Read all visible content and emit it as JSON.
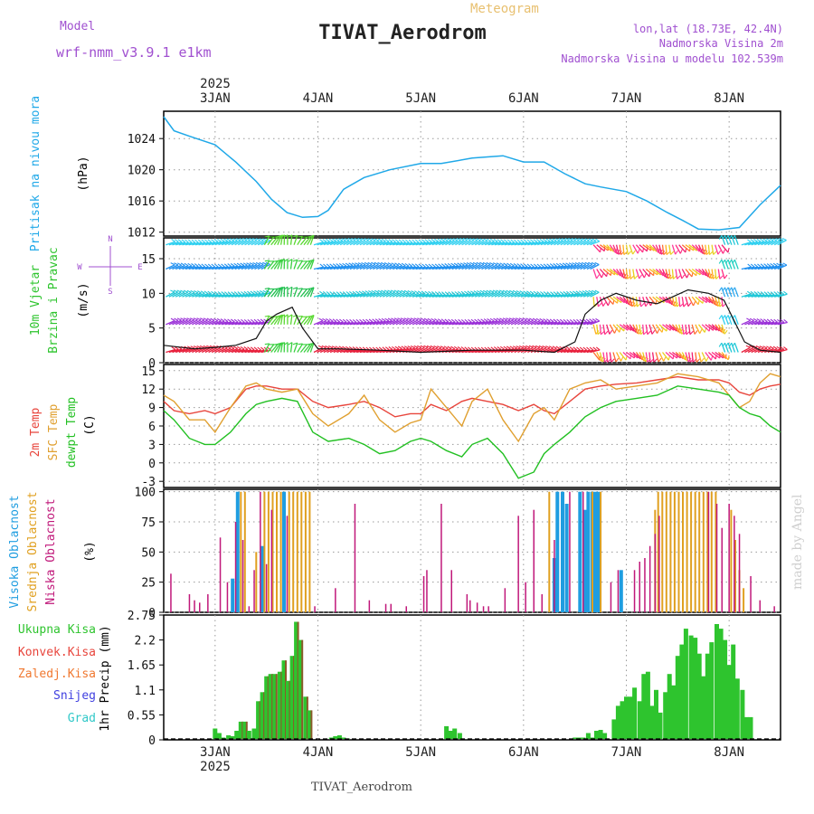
{
  "header": {
    "model_label": "Model",
    "model_name": "wrf-nmm_v3.9.1 e1km",
    "product": "Meteogram",
    "station": "TIVAT_Aerodrom",
    "coords": "lon,lat (18.73E, 42.4N)",
    "elevation": "Nadmorska Visina 2m",
    "model_elevation": "Nadmorska Visina u modelu 102.539m",
    "year": "2025",
    "footer_station": "TIVAT_Aerodrom",
    "watermark": "made by Angel"
  },
  "colors": {
    "pressure": "#1fa8e8",
    "temp2m": "#e8453c",
    "sfc_temp": "#e0a030",
    "dewpoint": "#22c022",
    "cloud_high": "#1f9de0",
    "cloud_mid": "#e0a020",
    "cloud_low": "#c0187a",
    "precip_total": "#2ec42e",
    "precip_conv": "#d03030",
    "precip_frozen": "#f07830",
    "snow": "#4040e0",
    "hail": "#30c8c8",
    "title_purple": "#a050d0",
    "meteogram_gold": "#e8c070"
  },
  "chart_data": [
    {
      "type": "line",
      "panel": "pressure",
      "ylabel": "(hPa)",
      "series_label": "Pritisak na nivou mora",
      "x_ticks": [
        "3JAN",
        "4JAN",
        "5JAN",
        "6JAN",
        "7JAN",
        "8JAN"
      ],
      "ylim": [
        1011.5,
        1027.5
      ],
      "y_ticks": [
        1012,
        1016,
        1020,
        1024
      ],
      "x_days": [
        2.5,
        2.6,
        2.75,
        3.0,
        3.2,
        3.4,
        3.55,
        3.7,
        3.85,
        4.0,
        4.1,
        4.25,
        4.45,
        4.7,
        5.0,
        5.2,
        5.5,
        5.8,
        6.0,
        6.2,
        6.4,
        6.6,
        6.75,
        7.0,
        7.2,
        7.4,
        7.55,
        7.7,
        7.9,
        8.1,
        8.3,
        8.5
      ],
      "values": [
        1026.8,
        1025.0,
        1024.3,
        1023.2,
        1021.0,
        1018.5,
        1016.2,
        1014.5,
        1013.9,
        1014.0,
        1014.8,
        1017.5,
        1019.0,
        1020.0,
        1020.8,
        1020.8,
        1021.5,
        1021.8,
        1021.0,
        1021.0,
        1019.5,
        1018.2,
        1017.8,
        1017.2,
        1016.0,
        1014.5,
        1013.5,
        1012.4,
        1012.3,
        1012.6,
        1015.5,
        1018.0
      ]
    },
    {
      "type": "line",
      "panel": "wind",
      "ylabel": "(m/s)",
      "series_label_1": "10m Vjetar",
      "series_label_2": "Brzina i Pravac",
      "compass_n": "N",
      "compass_s": "S",
      "compass_w": "W",
      "compass_e": "E",
      "ylim": [
        0,
        18
      ],
      "y_ticks": [
        0,
        5,
        10,
        15
      ],
      "x_days": [
        2.5,
        2.8,
        3.0,
        3.2,
        3.4,
        3.5,
        3.6,
        3.75,
        3.85,
        4.0,
        4.2,
        4.6,
        5.0,
        5.5,
        6.0,
        6.3,
        6.5,
        6.6,
        6.75,
        6.9,
        7.1,
        7.3,
        7.45,
        7.6,
        7.8,
        7.95,
        8.05,
        8.15,
        8.3,
        8.5
      ],
      "values": [
        2.5,
        2.0,
        2.2,
        2.5,
        3.5,
        6.0,
        7.0,
        8.0,
        5.0,
        2.0,
        2.0,
        1.8,
        1.5,
        1.8,
        1.8,
        1.5,
        3.0,
        7.0,
        9.0,
        10.0,
        9.0,
        8.5,
        9.5,
        10.5,
        10.0,
        9.0,
        6.0,
        3.0,
        1.8,
        1.5
      ],
      "barb_band_levels": [
        1.5,
        5.5,
        9.5,
        13.5,
        17.0
      ],
      "band_colors": [
        "#e8203c",
        "#9a30d8",
        "#20c8d8",
        "#2090f0",
        "#30d0f0"
      ]
    },
    {
      "type": "line",
      "panel": "temperature",
      "ylabel": "(C)",
      "series_label_1": "2m Temp",
      "series_label_2": "SFC Temp",
      "series_label_3": "dewpt Temp",
      "ylim": [
        -4,
        16
      ],
      "y_ticks": [
        -3,
        0,
        3,
        6,
        9,
        12,
        15
      ],
      "x_days": [
        2.5,
        2.6,
        2.75,
        2.9,
        3.0,
        3.15,
        3.3,
        3.4,
        3.5,
        3.65,
        3.8,
        3.95,
        4.1,
        4.3,
        4.45,
        4.6,
        4.75,
        4.9,
        5.0,
        5.1,
        5.25,
        5.4,
        5.5,
        5.65,
        5.8,
        5.95,
        6.1,
        6.2,
        6.3,
        6.45,
        6.6,
        6.75,
        6.9,
        7.1,
        7.3,
        7.5,
        7.7,
        7.9,
        8.0,
        8.1,
        8.2,
        8.3,
        8.4,
        8.5
      ],
      "series": [
        {
          "name": "2m Temp",
          "values": [
            10.0,
            8.5,
            8.0,
            8.5,
            8.0,
            9.0,
            12.0,
            12.5,
            12.5,
            12.0,
            12.0,
            10.0,
            9.0,
            9.5,
            10.0,
            9.0,
            7.5,
            8.0,
            8.0,
            9.5,
            8.5,
            10.0,
            10.5,
            10.0,
            9.5,
            8.5,
            9.5,
            8.5,
            8.0,
            10.0,
            12.0,
            12.5,
            12.8,
            13.0,
            13.5,
            14.0,
            13.5,
            13.5,
            13.0,
            11.5,
            11.0,
            12.0,
            12.5,
            12.8
          ]
        },
        {
          "name": "SFC Temp",
          "values": [
            11.0,
            10.0,
            7.0,
            7.0,
            5.0,
            9.0,
            12.5,
            13.0,
            12.0,
            11.5,
            12.0,
            8.0,
            6.0,
            8.0,
            11.0,
            7.0,
            5.0,
            6.5,
            7.0,
            12.0,
            9.0,
            6.0,
            10.0,
            12.0,
            7.0,
            3.5,
            8.0,
            9.0,
            7.0,
            12.0,
            13.0,
            13.5,
            12.0,
            12.5,
            13.0,
            14.5,
            14.0,
            13.0,
            11.0,
            9.0,
            10.0,
            13.0,
            14.5,
            14.0
          ]
        },
        {
          "name": "dewpt Temp",
          "values": [
            8.5,
            7.0,
            4.0,
            3.0,
            3.0,
            5.0,
            8.0,
            9.5,
            10.0,
            10.5,
            10.0,
            5.0,
            3.5,
            4.0,
            3.0,
            1.5,
            2.0,
            3.5,
            4.0,
            3.5,
            2.0,
            1.0,
            3.0,
            4.0,
            1.5,
            -2.5,
            -1.5,
            1.5,
            3.0,
            5.0,
            7.5,
            9.0,
            10.0,
            10.5,
            11.0,
            12.5,
            12.0,
            11.5,
            11.0,
            9.0,
            8.0,
            7.5,
            6.0,
            5.0
          ]
        }
      ]
    },
    {
      "type": "bar",
      "panel": "clouds",
      "ylabel": "(%)",
      "series_label_1": "Visoka Oblacnost",
      "series_label_2": "Srednja Oblacnost",
      "series_label_3": "Niska Oblacnost",
      "ylim": [
        0,
        102
      ],
      "y_ticks": [
        0,
        25,
        50,
        75,
        100
      ],
      "series": [
        {
          "name": "Visoka Oblacnost",
          "points": [
            [
              3.17,
              28
            ],
            [
              3.22,
              100
            ],
            [
              3.46,
              55
            ],
            [
              3.67,
              100
            ],
            [
              6.3,
              45
            ],
            [
              6.33,
              100
            ],
            [
              6.38,
              100
            ],
            [
              6.42,
              90
            ],
            [
              6.55,
              100
            ],
            [
              6.6,
              85
            ],
            [
              6.63,
              100
            ],
            [
              6.67,
              100
            ],
            [
              6.7,
              100
            ],
            [
              6.73,
              100
            ],
            [
              6.95,
              35
            ]
          ]
        },
        {
          "name": "Srednja Oblacnost",
          "points": [
            [
              3.25,
              100
            ],
            [
              3.29,
              100
            ],
            [
              3.4,
              50
            ],
            [
              3.48,
              100
            ],
            [
              3.52,
              100
            ],
            [
              3.56,
              100
            ],
            [
              3.6,
              100
            ],
            [
              3.64,
              100
            ],
            [
              3.72,
              100
            ],
            [
              3.76,
              100
            ],
            [
              3.8,
              100
            ],
            [
              3.84,
              100
            ],
            [
              3.88,
              100
            ],
            [
              3.92,
              100
            ],
            [
              6.25,
              100
            ],
            [
              6.67,
              100
            ],
            [
              6.75,
              100
            ],
            [
              7.28,
              85
            ],
            [
              7.31,
              100
            ],
            [
              7.35,
              100
            ],
            [
              7.39,
              100
            ],
            [
              7.43,
              100
            ],
            [
              7.47,
              100
            ],
            [
              7.51,
              100
            ],
            [
              7.55,
              100
            ],
            [
              7.59,
              100
            ],
            [
              7.63,
              100
            ],
            [
              7.67,
              100
            ],
            [
              7.71,
              100
            ],
            [
              7.75,
              100
            ],
            [
              7.79,
              100
            ],
            [
              7.83,
              100
            ],
            [
              7.87,
              100
            ],
            [
              8.02,
              85
            ],
            [
              8.06,
              60
            ],
            [
              8.1,
              35
            ],
            [
              8.14,
              20
            ]
          ]
        },
        {
          "name": "Niska Oblacnost",
          "points": [
            [
              2.57,
              32
            ],
            [
              2.75,
              15
            ],
            [
              2.8,
              10
            ],
            [
              2.85,
              8
            ],
            [
              2.93,
              15
            ],
            [
              3.05,
              62
            ],
            [
              3.12,
              25
            ],
            [
              3.2,
              75
            ],
            [
              3.27,
              60
            ],
            [
              3.33,
              5
            ],
            [
              3.38,
              35
            ],
            [
              3.44,
              100
            ],
            [
              3.5,
              40
            ],
            [
              3.55,
              85
            ],
            [
              3.7,
              80
            ],
            [
              3.97,
              5
            ],
            [
              4.17,
              20
            ],
            [
              4.36,
              90
            ],
            [
              4.5,
              10
            ],
            [
              4.66,
              7
            ],
            [
              4.71,
              7
            ],
            [
              4.86,
              5
            ],
            [
              5.03,
              30
            ],
            [
              5.06,
              35
            ],
            [
              5.2,
              90
            ],
            [
              5.3,
              35
            ],
            [
              5.45,
              15
            ],
            [
              5.48,
              10
            ],
            [
              5.55,
              8
            ],
            [
              5.61,
              5
            ],
            [
              5.66,
              5
            ],
            [
              5.82,
              20
            ],
            [
              5.95,
              80
            ],
            [
              6.02,
              25
            ],
            [
              6.1,
              85
            ],
            [
              6.18,
              15
            ],
            [
              6.3,
              60
            ],
            [
              6.45,
              100
            ],
            [
              6.58,
              100
            ],
            [
              6.85,
              25
            ],
            [
              6.92,
              35
            ],
            [
              7.08,
              35
            ],
            [
              7.13,
              42
            ],
            [
              7.18,
              45
            ],
            [
              7.23,
              55
            ],
            [
              7.28,
              65
            ],
            [
              7.32,
              80
            ],
            [
              7.8,
              100
            ],
            [
              7.88,
              90
            ],
            [
              7.93,
              70
            ],
            [
              8.0,
              90
            ],
            [
              8.05,
              80
            ],
            [
              8.1,
              65
            ],
            [
              8.21,
              30
            ],
            [
              8.3,
              10
            ],
            [
              8.44,
              5
            ]
          ]
        }
      ]
    },
    {
      "type": "bar",
      "panel": "precip",
      "ylabel": "1hr Precip (mm)",
      "series_label_1": "Ukupna Kisa",
      "series_label_2": "Konvek.Kisa",
      "series_label_3": "Zaledj.Kisa",
      "series_label_4": "Snijeg",
      "series_label_5": "Grad",
      "x_ticks": [
        "3JAN",
        "4JAN",
        "5JAN",
        "6JAN",
        "7JAN",
        "8JAN"
      ],
      "ylim": [
        0,
        2.75
      ],
      "y_ticks": [
        "0",
        "0.55",
        "1.1",
        "1.65",
        "2.2",
        "2.75"
      ],
      "x_days": [
        3.0,
        3.04,
        3.08,
        3.13,
        3.17,
        3.21,
        3.25,
        3.29,
        3.33,
        3.38,
        3.42,
        3.46,
        3.5,
        3.54,
        3.58,
        3.63,
        3.67,
        3.71,
        3.75,
        3.79,
        3.83,
        3.88,
        3.92,
        4.13,
        4.17,
        4.21,
        4.25,
        4.29,
        5.25,
        5.29,
        5.33,
        5.38,
        6.5,
        6.54,
        6.58,
        6.63,
        6.67,
        6.71,
        6.75,
        6.79,
        6.88,
        6.92,
        6.96,
        7.0,
        7.04,
        7.08,
        7.13,
        7.17,
        7.21,
        7.25,
        7.29,
        7.33,
        7.38,
        7.42,
        7.46,
        7.5,
        7.54,
        7.58,
        7.63,
        7.67,
        7.71,
        7.75,
        7.79,
        7.83,
        7.88,
        7.92,
        7.96,
        8.0,
        8.04,
        8.08,
        8.13,
        8.17,
        8.21
      ],
      "values": [
        0.25,
        0.15,
        0.05,
        0.1,
        0.08,
        0.2,
        0.4,
        0.4,
        0.2,
        0.25,
        0.85,
        1.05,
        1.4,
        1.45,
        1.45,
        1.5,
        1.75,
        1.3,
        1.85,
        2.6,
        2.2,
        0.95,
        0.65,
        0.05,
        0.08,
        0.1,
        0.05,
        0.03,
        0.3,
        0.2,
        0.25,
        0.15,
        0.05,
        0.05,
        0.05,
        0.15,
        0.05,
        0.2,
        0.22,
        0.15,
        0.45,
        0.75,
        0.85,
        0.95,
        0.95,
        1.15,
        0.85,
        1.45,
        1.5,
        0.75,
        1.1,
        0.6,
        1.05,
        1.45,
        1.2,
        1.85,
        2.1,
        2.45,
        2.3,
        2.25,
        1.9,
        1.4,
        1.9,
        2.15,
        2.55,
        2.45,
        2.2,
        1.65,
        2.1,
        1.35,
        1.1,
        0.5,
        0.5
      ]
    }
  ]
}
